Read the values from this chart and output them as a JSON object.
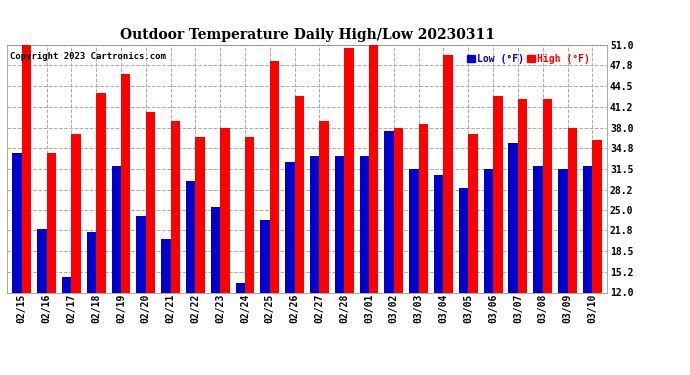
{
  "title": "Outdoor Temperature Daily High/Low 20230311",
  "copyright": "Copyright 2023 Cartronics.com",
  "dates": [
    "02/15",
    "02/16",
    "02/17",
    "02/18",
    "02/19",
    "02/20",
    "02/21",
    "02/22",
    "02/23",
    "02/24",
    "02/25",
    "02/26",
    "02/27",
    "02/28",
    "03/01",
    "03/02",
    "03/03",
    "03/04",
    "03/05",
    "03/06",
    "03/07",
    "03/08",
    "03/09",
    "03/10"
  ],
  "highs": [
    51.0,
    34.0,
    37.0,
    43.5,
    46.5,
    40.5,
    39.0,
    36.5,
    38.0,
    36.5,
    48.5,
    43.0,
    39.0,
    50.5,
    51.5,
    38.0,
    38.5,
    49.5,
    37.0,
    43.0,
    42.5,
    42.5,
    38.0,
    36.0
  ],
  "lows": [
    34.0,
    22.0,
    14.5,
    21.5,
    32.0,
    24.0,
    20.5,
    29.5,
    25.5,
    13.5,
    23.5,
    32.5,
    33.5,
    33.5,
    33.5,
    37.5,
    31.5,
    30.5,
    28.5,
    31.5,
    35.5,
    32.0,
    31.5,
    32.0
  ],
  "high_color": "#ff0000",
  "low_color": "#0000cc",
  "bg_color": "#ffffff",
  "plot_bg_color": "#ffffff",
  "grid_color": "#aaaaaa",
  "ylim": [
    12.0,
    51.0
  ],
  "yticks": [
    12.0,
    15.2,
    18.5,
    21.8,
    25.0,
    28.2,
    31.5,
    34.8,
    38.0,
    41.2,
    44.5,
    47.8,
    51.0
  ]
}
